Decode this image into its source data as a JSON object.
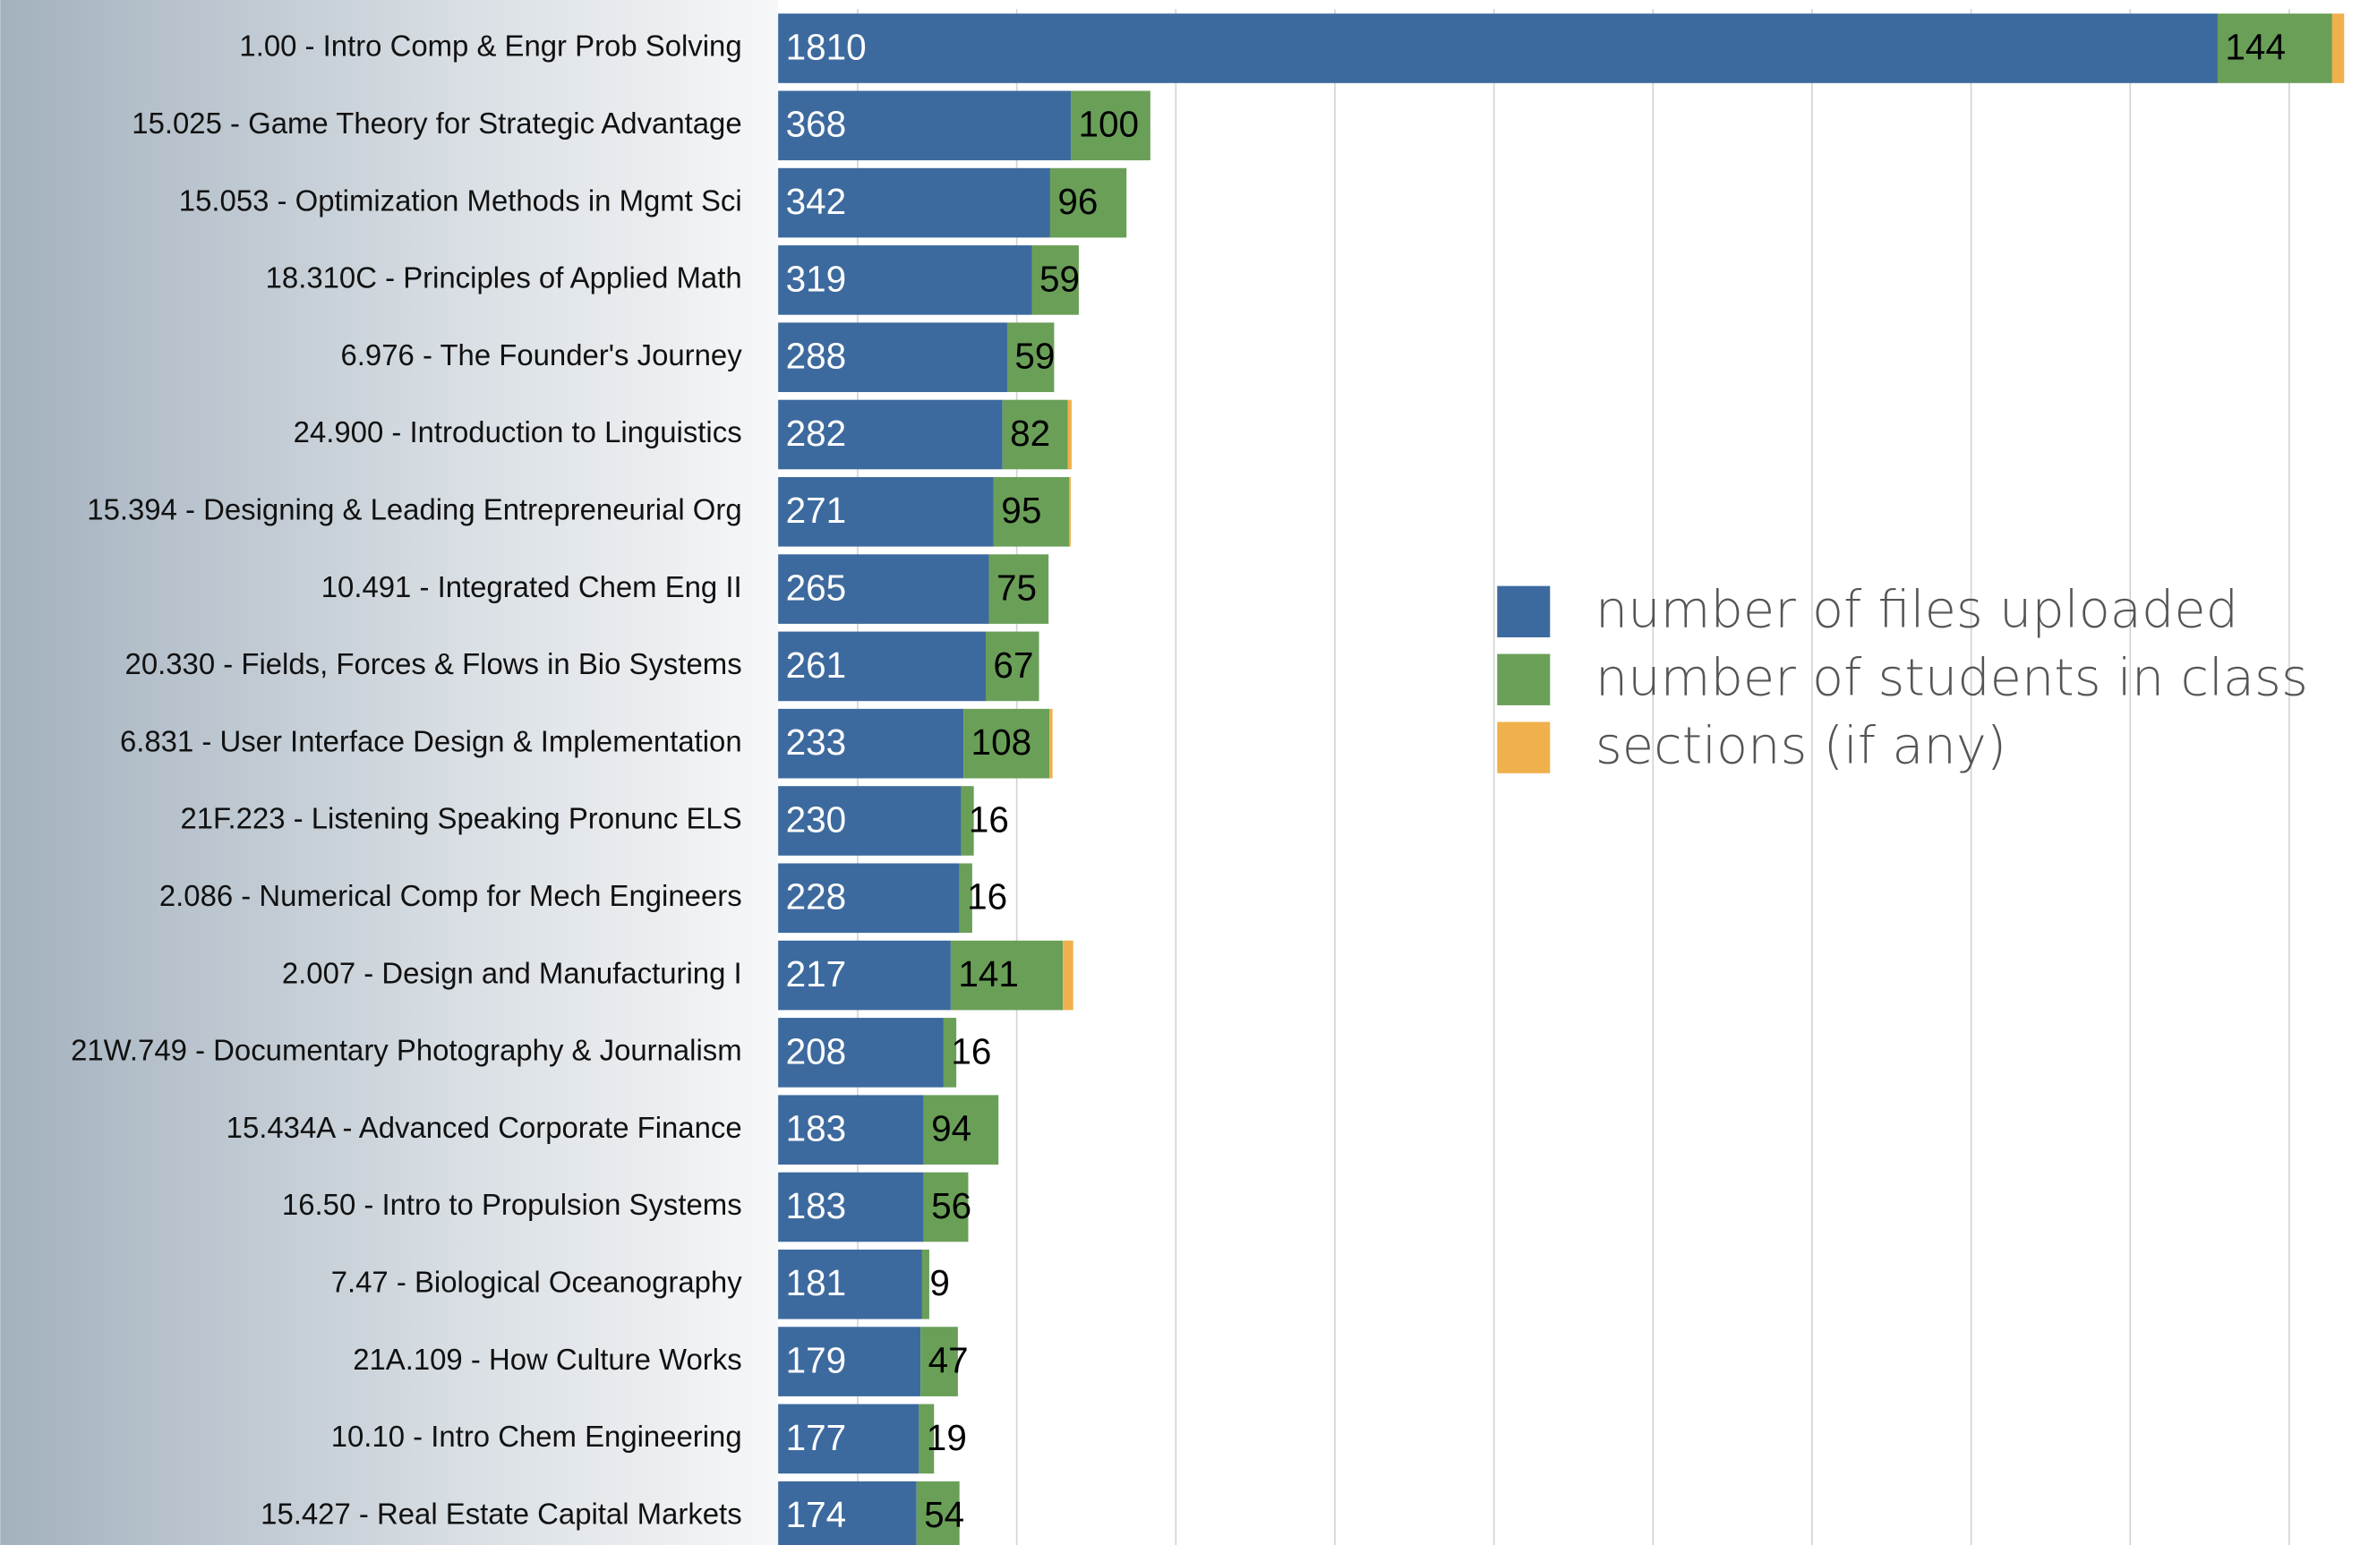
{
  "chart_data": {
    "type": "stacked-barh",
    "categories": [
      "1.00 - Intro Comp & Engr Prob Solving",
      "15.025 - Game Theory for Strategic Advantage",
      "15.053 - Optimization Methods in Mgmt Sci",
      "18.310C - Principles of Applied Math",
      "6.976 - The Founder's Journey",
      "24.900 - Introduction to Linguistics",
      "15.394 - Designing & Leading Entrepreneurial Org",
      "10.491 -  Integrated Chem Eng II",
      "20.330 - Fields, Forces & Flows in Bio Systems",
      "6.831 - User Interface Design & Implementation",
      "21F.223 - Listening Speaking Pronunc ELS",
      "2.086 - Numerical Comp for Mech Engineers",
      "2.007 - Design and Manufacturing I",
      "21W.749 - Documentary Photography & Journalism",
      "15.434A - Advanced Corporate Finance",
      "16.50 - Intro to Propulsion Systems",
      "7.47 - Biological Oceanography",
      "21A.109 - How Culture Works",
      "10.10 - Intro Chem Engineering",
      "15.427 - Real Estate Capital Markets"
    ],
    "series": [
      {
        "name": "number of files uploaded",
        "color": "#3d6a9e",
        "label_color": "#ffffff",
        "values": [
          1810,
          368,
          342,
          319,
          288,
          282,
          271,
          265,
          261,
          233,
          230,
          228,
          217,
          208,
          183,
          183,
          181,
          179,
          177,
          174
        ]
      },
      {
        "name": "number of students in class",
        "color": "#6a9f58",
        "label_color": "#000000",
        "values": [
          144,
          100,
          96,
          59,
          59,
          82,
          95,
          75,
          67,
          108,
          16,
          16,
          141,
          16,
          94,
          56,
          9,
          47,
          19,
          54
        ]
      },
      {
        "name": "sections (if any)",
        "color": "#f0b04c",
        "values": [
          15,
          0,
          0,
          0,
          0,
          5,
          2,
          0,
          0,
          4,
          0,
          0,
          13,
          0,
          0,
          0,
          0,
          0,
          0,
          0
        ]
      }
    ],
    "xlim": [
      0,
      2000
    ],
    "xticks": [
      100,
      300,
      500,
      700,
      900,
      1100,
      1300,
      1500,
      1700,
      1900
    ],
    "grid": true
  }
}
